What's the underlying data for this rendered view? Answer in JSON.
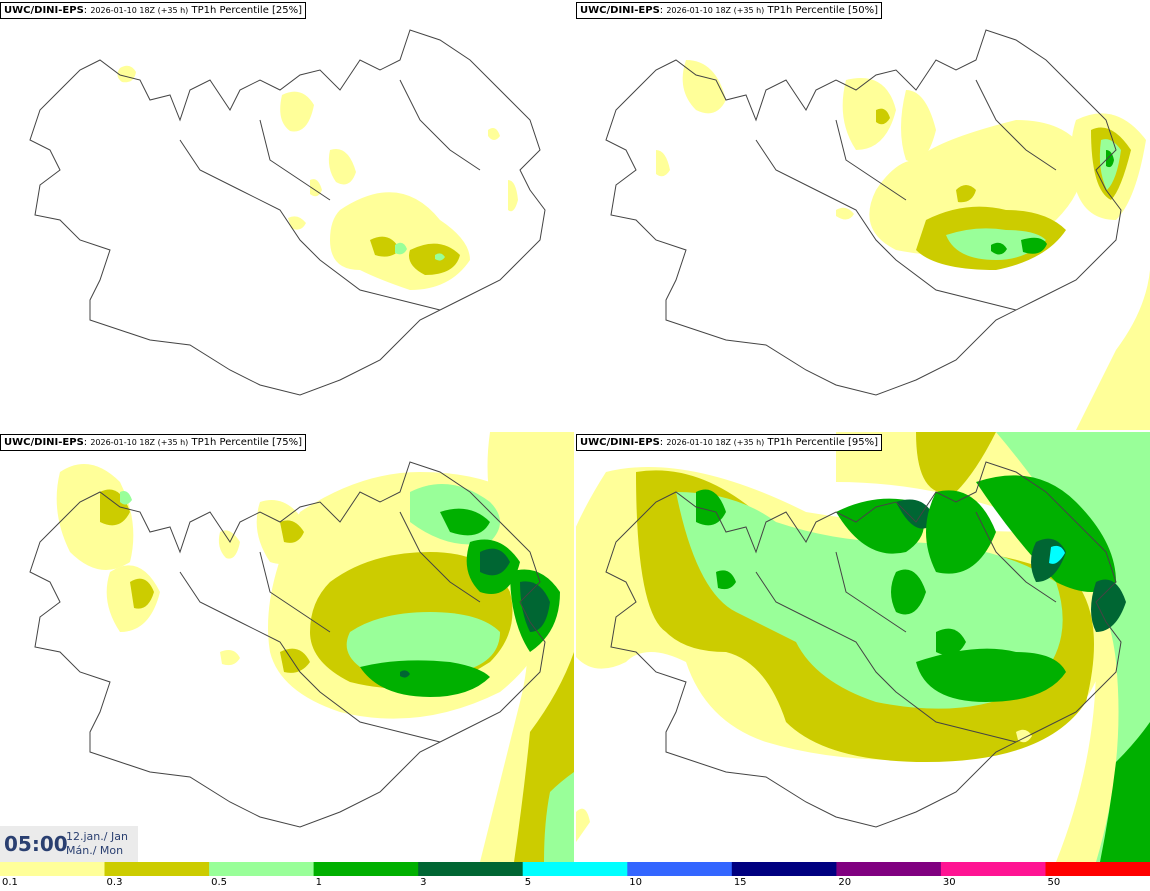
{
  "panels": [
    {
      "model": "UWC/DINI-EPS",
      "run": "2026-01-10 18Z (+35 h)",
      "field": "TP1h Percentile [25%]"
    },
    {
      "model": "UWC/DINI-EPS",
      "run": "2026-01-10 18Z (+35 h)",
      "field": "TP1h Percentile [50%]"
    },
    {
      "model": "UWC/DINI-EPS",
      "run": "2026-01-10 18Z (+35 h)",
      "field": "TP1h Percentile [75%]"
    },
    {
      "model": "UWC/DINI-EPS",
      "run": "2026-01-10 18Z (+35 h)",
      "field": "TP1h Percentile [95%]"
    }
  ],
  "valid_time": {
    "time": "05:00",
    "date_line1": "12.jan./ Jan",
    "date_line2": "Mán./ Mon"
  },
  "colorbar": {
    "labels": [
      "0.1",
      "0.3",
      "0.5",
      "1",
      "3",
      "5",
      "10",
      "15",
      "20",
      "30",
      "50"
    ],
    "colors": [
      "#ffff99",
      "#cccc00",
      "#99ff99",
      "#00b000",
      "#006633",
      "#00ffff",
      "#3366ff",
      "#000080",
      "#800080",
      "#ff1493",
      "#ff0000"
    ]
  },
  "map_colors": {
    "line": "#444444",
    "bg": "#ffffff"
  }
}
